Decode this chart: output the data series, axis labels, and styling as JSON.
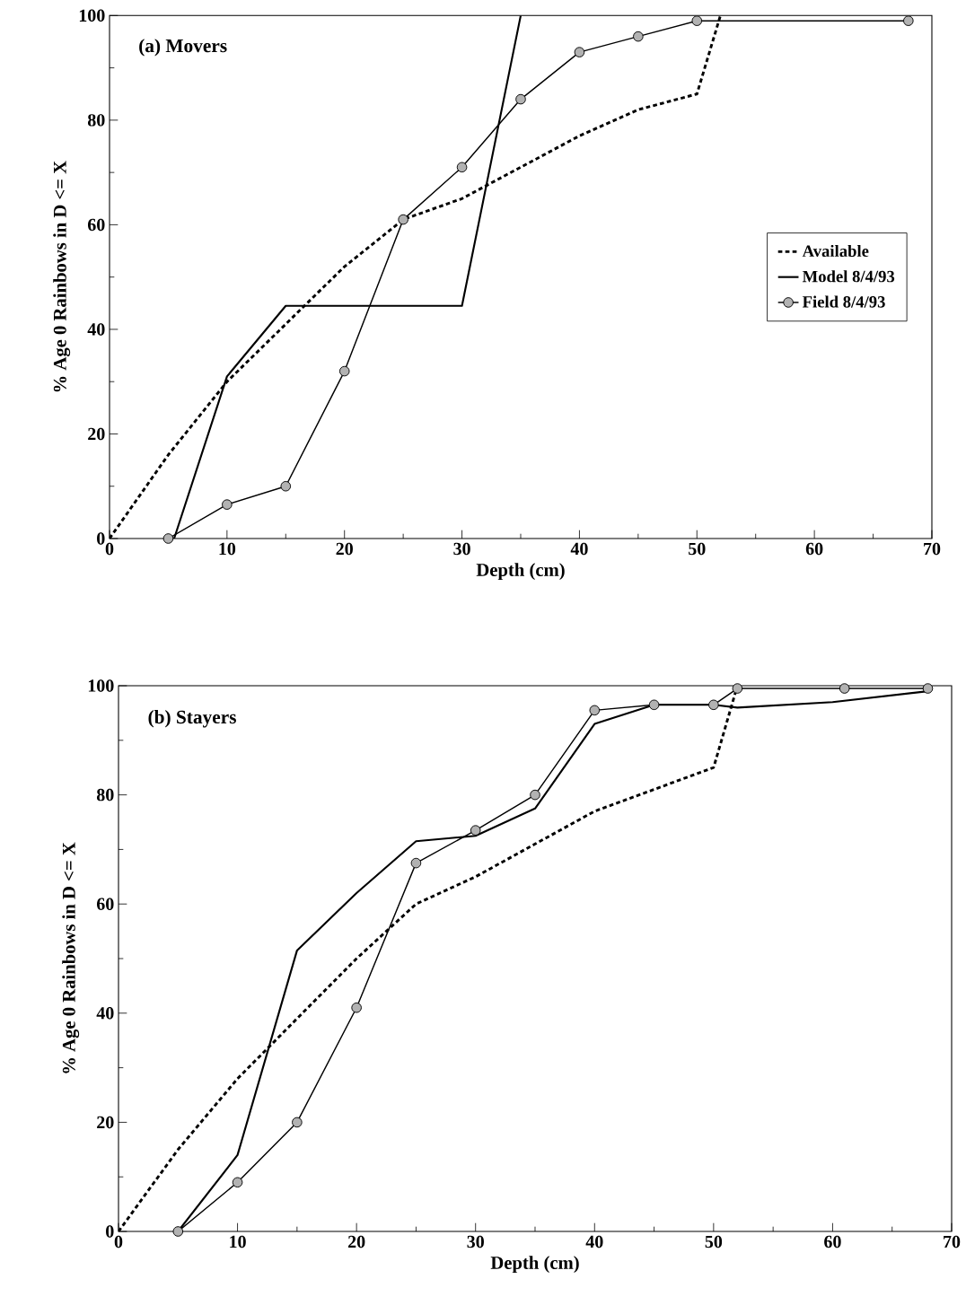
{
  "chart_data": [
    {
      "type": "line",
      "title": "(a) Movers",
      "xlabel": "Depth (cm)",
      "ylabel": "% Age 0 Rainbows in D <= X",
      "xlim": [
        0,
        70
      ],
      "ylim": [
        0,
        100
      ],
      "xticks": [
        0,
        {
          "value": 5,
          "label": null
        },
        10,
        {
          "value": 15,
          "label": null
        },
        20,
        {
          "value": 25,
          "label": null
        },
        30,
        {
          "value": 35,
          "label": null
        },
        40,
        {
          "value": 45,
          "label": null
        },
        50,
        {
          "value": 55,
          "label": null
        },
        60,
        {
          "value": 65,
          "label": null
        },
        70
      ],
      "yticks": [
        0,
        {
          "value": 10,
          "label": null
        },
        20,
        {
          "value": 30,
          "label": null
        },
        40,
        {
          "value": 50,
          "label": null
        },
        60,
        {
          "value": 70,
          "label": null
        },
        80,
        {
          "value": 90,
          "label": null
        },
        100
      ],
      "legend": "right",
      "series": [
        {
          "name": "Available",
          "color": "#000000",
          "line_style": "dashed",
          "marker": "none",
          "x": [
            0,
            5,
            10,
            15,
            20,
            25,
            30,
            35,
            40,
            45,
            50,
            52
          ],
          "values": [
            0,
            16,
            30,
            41,
            52,
            61,
            65,
            71,
            77,
            82,
            85,
            100
          ]
        },
        {
          "name": "Model 8/4/93",
          "color": "#000000",
          "line_style": "solid",
          "marker": "none",
          "x": [
            5.5,
            10,
            15,
            30,
            35
          ],
          "values": [
            0,
            31,
            44.5,
            44.5,
            100
          ]
        },
        {
          "name": "Field 8/4/93",
          "color": "#000000",
          "line_style": "solid",
          "marker": "circle",
          "x": [
            5,
            10,
            15,
            20,
            25,
            30,
            35,
            40,
            45,
            50,
            68
          ],
          "values": [
            0,
            6.5,
            10,
            32,
            61,
            71,
            84,
            93,
            96,
            99,
            99
          ]
        }
      ]
    },
    {
      "type": "line",
      "title": "(b) Stayers",
      "xlabel": "Depth (cm)",
      "ylabel": "% Age 0 Rainbows in D <= X",
      "xlim": [
        0,
        70
      ],
      "ylim": [
        0,
        100
      ],
      "xticks": [
        0,
        {
          "value": 5,
          "label": null
        },
        10,
        {
          "value": 15,
          "label": null
        },
        20,
        {
          "value": 25,
          "label": null
        },
        30,
        {
          "value": 35,
          "label": null
        },
        40,
        {
          "value": 45,
          "label": null
        },
        50,
        {
          "value": 55,
          "label": null
        },
        60,
        {
          "value": 65,
          "label": null
        },
        70
      ],
      "yticks": [
        0,
        {
          "value": 10,
          "label": null
        },
        20,
        {
          "value": 30,
          "label": null
        },
        40,
        {
          "value": 50,
          "label": null
        },
        60,
        {
          "value": 70,
          "label": null
        },
        80,
        {
          "value": 90,
          "label": null
        },
        100
      ],
      "series": [
        {
          "color": "#000000",
          "line_style": "dashed",
          "marker": "none",
          "x": [
            0,
            5,
            10,
            15,
            20,
            25,
            30,
            35,
            40,
            45,
            50,
            52
          ],
          "values": [
            0,
            15,
            28,
            39,
            50,
            60,
            65,
            71,
            77,
            81,
            85,
            100
          ]
        },
        {
          "color": "#000000",
          "line_style": "solid",
          "marker": "none",
          "x": [
            5,
            10,
            15,
            20,
            25,
            30,
            35,
            40,
            45,
            50,
            52,
            60,
            68
          ],
          "values": [
            0,
            14,
            51.5,
            62,
            71.5,
            72.5,
            77.5,
            93,
            96.5,
            96.5,
            96,
            97,
            99
          ]
        },
        {
          "color": "#000000",
          "line_style": "solid",
          "marker": "circle",
          "x": [
            5,
            10,
            15,
            20,
            25,
            30,
            35,
            40,
            45,
            50,
            52,
            61,
            68
          ],
          "values": [
            0,
            9,
            20,
            41,
            67.5,
            73.5,
            80,
            95.5,
            96.5,
            96.5,
            99.5,
            99.5,
            99.5
          ]
        }
      ]
    }
  ]
}
